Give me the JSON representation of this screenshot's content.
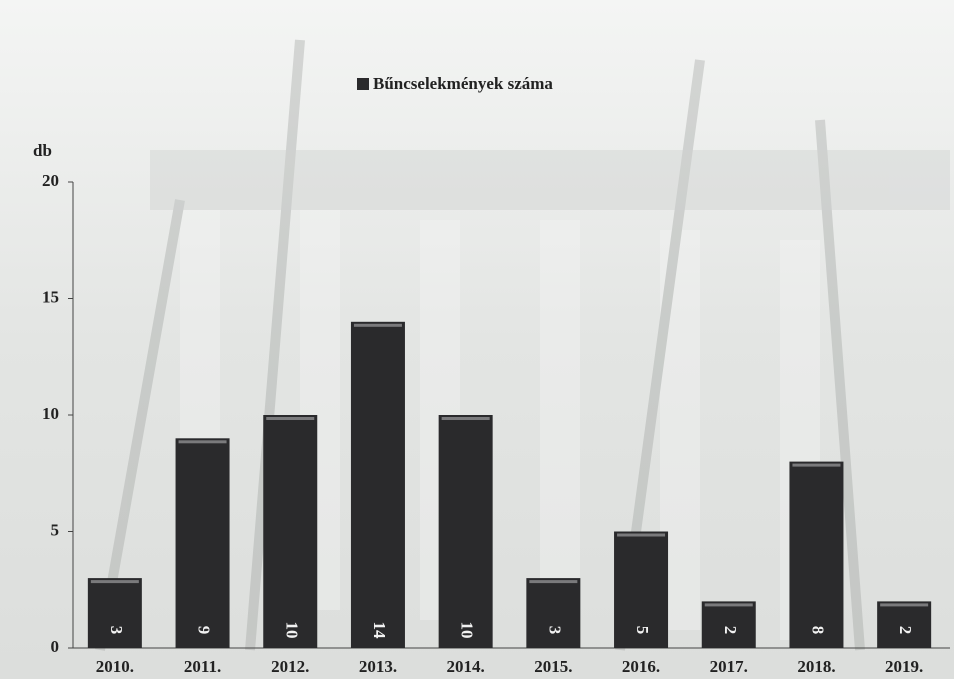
{
  "chart_data": {
    "type": "bar",
    "y_label": "db",
    "categories": [
      "2010.",
      "2011.",
      "2012.",
      "2013.",
      "2014.",
      "2015.",
      "2016.",
      "2017.",
      "2018.",
      "2019."
    ],
    "series": [
      {
        "name": "Bűncselekmények száma",
        "color": "#2a2a2c",
        "values": [
          3,
          9,
          10,
          14,
          10,
          3,
          5,
          2,
          8,
          2
        ]
      }
    ],
    "ylim": [
      0,
      20
    ],
    "yticks": [
      0,
      5,
      10,
      15,
      20
    ],
    "legend": "top"
  }
}
